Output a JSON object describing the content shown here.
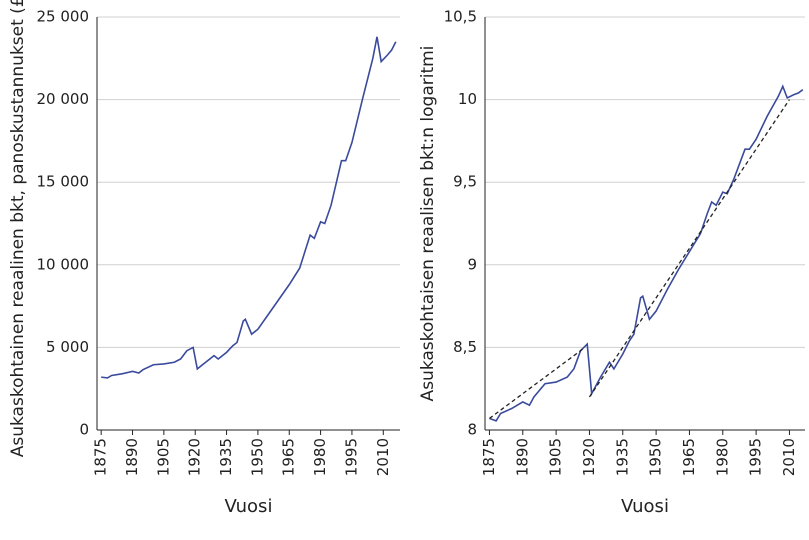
{
  "chart_data": [
    {
      "type": "line",
      "xlabel": "Vuosi",
      "ylabel": "Asukaskohtainen reaalinen bkt, panoskustannukset (£)",
      "x": [
        1875,
        1878,
        1880,
        1885,
        1890,
        1893,
        1895,
        1900,
        1905,
        1910,
        1913,
        1916,
        1919,
        1921,
        1925,
        1929,
        1931,
        1935,
        1938,
        1940,
        1943,
        1944,
        1947,
        1950,
        1955,
        1960,
        1965,
        1970,
        1973,
        1975,
        1977,
        1980,
        1982,
        1985,
        1990,
        1992,
        1995,
        2000,
        2005,
        2007,
        2009,
        2012,
        2014,
        2016
      ],
      "series": [
        {
          "color": "#3a4a9c",
          "values": [
            3200,
            3150,
            3300,
            3400,
            3550,
            3450,
            3650,
            3950,
            4000,
            4100,
            4300,
            4800,
            5000,
            3700,
            4100,
            4500,
            4300,
            4700,
            5100,
            5300,
            6600,
            6700,
            5800,
            6100,
            7000,
            7900,
            8800,
            9800,
            11000,
            11800,
            11600,
            12600,
            12500,
            13600,
            16300,
            16300,
            17400,
            20000,
            22500,
            23800,
            22300,
            22700,
            23000,
            23500
          ]
        }
      ],
      "xlim": [
        1873,
        2018
      ],
      "ylim": [
        0,
        25000
      ],
      "xticks": [
        1875,
        1890,
        1905,
        1920,
        1935,
        1950,
        1965,
        1980,
        1995,
        2010
      ],
      "yticks": [
        0,
        {
          "value": 5000,
          "label": "5 000"
        },
        {
          "value": 10000,
          "label": "10 000"
        },
        {
          "value": 15000,
          "label": "15 000"
        },
        {
          "value": 20000,
          "label": "20 000"
        },
        {
          "value": 25000,
          "label": "25 000"
        }
      ],
      "grid": true
    },
    {
      "type": "line",
      "xlabel": "Vuosi",
      "ylabel": "Asukaskohtaisen reaalisen bkt:n logaritmi",
      "x": [
        1875,
        1878,
        1880,
        1885,
        1890,
        1893,
        1895,
        1900,
        1905,
        1910,
        1913,
        1916,
        1919,
        1921,
        1925,
        1929,
        1931,
        1935,
        1938,
        1940,
        1943,
        1944,
        1947,
        1950,
        1955,
        1960,
        1965,
        1970,
        1973,
        1975,
        1977,
        1980,
        1982,
        1985,
        1990,
        1992,
        1995,
        2000,
        2005,
        2007,
        2009,
        2012,
        2014,
        2016
      ],
      "series": [
        {
          "color": "#3a4a9c",
          "values": [
            8.07,
            8.055,
            8.1,
            8.13,
            8.17,
            8.15,
            8.2,
            8.28,
            8.29,
            8.32,
            8.37,
            8.48,
            8.52,
            8.22,
            8.32,
            8.41,
            8.37,
            8.46,
            8.54,
            8.58,
            8.8,
            8.81,
            8.67,
            8.72,
            8.85,
            8.97,
            9.08,
            9.19,
            9.31,
            9.38,
            9.36,
            9.44,
            9.43,
            9.52,
            9.7,
            9.7,
            9.76,
            9.9,
            10.02,
            10.08,
            10.01,
            10.03,
            10.04,
            10.06
          ]
        },
        {
          "color": "#222222",
          "dashed": true,
          "x": [
            1875,
            1918,
            1919,
            1920,
            2010
          ],
          "values": [
            8.07,
            8.5,
            null,
            8.2,
            10.0
          ]
        }
      ],
      "xlim": [
        1873,
        2017
      ],
      "ylim": [
        8,
        10.5
      ],
      "xticks": [
        1875,
        1890,
        1905,
        1920,
        1935,
        1950,
        1965,
        1980,
        1995,
        2010
      ],
      "yticks": [
        8,
        {
          "value": 8.5,
          "label": "8,5"
        },
        9,
        {
          "value": 9.5,
          "label": "9,5"
        },
        10,
        {
          "value": 10.5,
          "label": "10,5"
        }
      ],
      "grid": true
    }
  ]
}
